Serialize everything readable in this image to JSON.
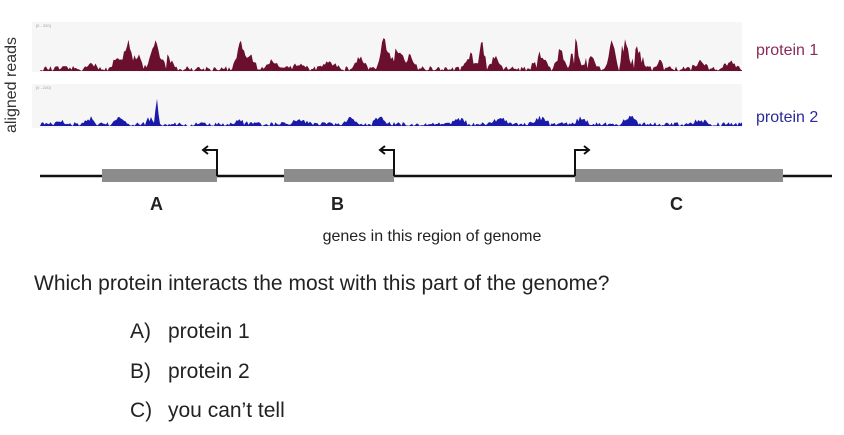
{
  "axis_label": "aligned reads",
  "tracks": [
    {
      "name": "protein 1",
      "color": "#6b0f2e",
      "label_color": "#8a2a5a",
      "scale_label": "[0 - 220]"
    },
    {
      "name": "protein 2",
      "color": "#1a1aa8",
      "label_color": "#2a2a9a",
      "scale_label": "[0 - 220]"
    }
  ],
  "genes": [
    {
      "name": "A",
      "tss_direction": "left"
    },
    {
      "name": "B",
      "tss_direction": "left"
    },
    {
      "name": "C",
      "tss_direction": "right"
    }
  ],
  "caption": "genes in this region of genome",
  "question": "Which protein interacts the most with this part of the genome?",
  "options": [
    {
      "key": "A)",
      "text": "protein 1"
    },
    {
      "key": "B)",
      "text": "protein 2"
    },
    {
      "key": "C)",
      "text": "you can’t tell"
    }
  ]
}
